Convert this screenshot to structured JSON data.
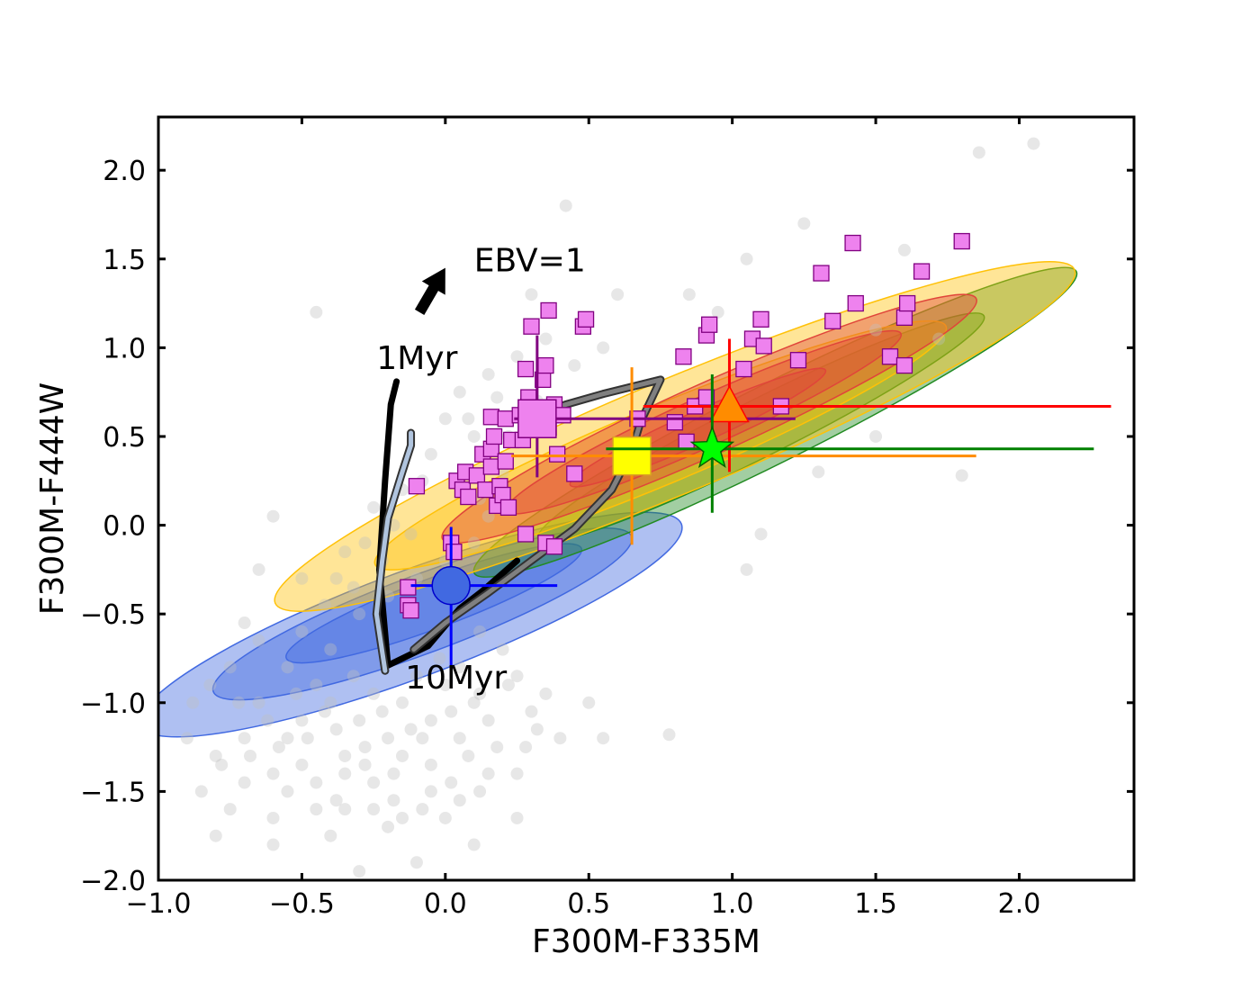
{
  "chart_data": {
    "type": "scatter",
    "xlabel": "F300M-F335M",
    "ylabel": "F300M-F444W",
    "xlim": [
      -1.0,
      2.4
    ],
    "ylim": [
      -2.0,
      2.3
    ],
    "xticks": [
      "−1.0",
      "−0.5",
      "0.0",
      "0.5",
      "1.0",
      "1.5",
      "2.0"
    ],
    "xtick_values": [
      -1.0,
      -0.5,
      0.0,
      0.5,
      1.0,
      1.5,
      2.0
    ],
    "yticks": [
      "−2.0",
      "−1.5",
      "−1.0",
      "−0.5",
      "0.0",
      "0.5",
      "1.0",
      "1.5",
      "2.0"
    ],
    "ytick_values": [
      -2.0,
      -1.5,
      -1.0,
      -0.5,
      0.0,
      0.5,
      1.0,
      1.5,
      2.0
    ],
    "annotations": [
      {
        "text": "EBV=1",
        "x": 0.1,
        "y": 1.43
      },
      {
        "text": "1Myr",
        "x": -0.24,
        "y": 0.88
      },
      {
        "text": "10Myr",
        "x": -0.14,
        "y": -0.92
      }
    ],
    "reddening_arrow": {
      "x0": -0.09,
      "y0": 1.2,
      "x1": 0.0,
      "y1": 1.45
    },
    "tracks": [
      {
        "color": "#000000",
        "points": [
          [
            -0.17,
            0.81
          ],
          [
            -0.19,
            0.68
          ],
          [
            -0.21,
            0.25
          ],
          [
            -0.23,
            -0.25
          ],
          [
            -0.2,
            -0.79
          ],
          [
            -0.06,
            -0.68
          ],
          [
            0.05,
            -0.47
          ],
          [
            0.13,
            -0.37
          ],
          [
            0.25,
            -0.2
          ]
        ]
      },
      {
        "color": "#b0c4de",
        "points": [
          [
            -0.12,
            0.52
          ],
          [
            -0.12,
            0.45
          ],
          [
            -0.15,
            0.3
          ],
          [
            -0.2,
            0.04
          ],
          [
            -0.22,
            -0.2
          ],
          [
            -0.24,
            -0.5
          ],
          [
            -0.21,
            -0.82
          ]
        ]
      },
      {
        "color": "#808080",
        "points": [
          [
            -0.11,
            -0.7
          ],
          [
            0.0,
            -0.55
          ],
          [
            0.15,
            -0.38
          ],
          [
            0.3,
            -0.2
          ],
          [
            0.45,
            -0.02
          ],
          [
            0.58,
            0.2
          ],
          [
            0.65,
            0.42
          ],
          [
            0.68,
            0.58
          ],
          [
            0.75,
            0.82
          ],
          [
            0.55,
            0.74
          ],
          [
            0.42,
            0.68
          ],
          [
            0.35,
            0.64
          ],
          [
            0.25,
            0.6
          ]
        ]
      }
    ],
    "contour_groups": [
      {
        "color": "#4169e1",
        "levels": [
          {
            "cx": -0.12,
            "cy": -0.56,
            "a": 1.1,
            "b": 0.3,
            "angle": 31
          },
          {
            "cx": -0.08,
            "cy": -0.5,
            "a": 0.85,
            "b": 0.22,
            "angle": 31
          },
          {
            "cx": -0.04,
            "cy": -0.44,
            "a": 0.6,
            "b": 0.14,
            "angle": 31
          }
        ]
      },
      {
        "color": "#228b22",
        "levels": [
          {
            "cx": 1.15,
            "cy": 0.58,
            "a": 1.35,
            "b": 0.22,
            "angle": 39
          },
          {
            "cx": 1.1,
            "cy": 0.55,
            "a": 1.0,
            "b": 0.16,
            "angle": 39
          }
        ]
      },
      {
        "color": "#ffc107",
        "levels": [
          {
            "cx": 0.8,
            "cy": 0.5,
            "a": 1.68,
            "b": 0.32,
            "angle": 34
          },
          {
            "cx": 0.75,
            "cy": 0.45,
            "a": 1.2,
            "b": 0.22,
            "angle": 34
          }
        ]
      },
      {
        "color": "#e0453a",
        "levels": [
          {
            "cx": 0.92,
            "cy": 0.6,
            "a": 1.15,
            "b": 0.2,
            "angle": 36
          },
          {
            "cx": 0.9,
            "cy": 0.58,
            "a": 0.85,
            "b": 0.14,
            "angle": 36
          },
          {
            "cx": 0.88,
            "cy": 0.55,
            "a": 0.55,
            "b": 0.09,
            "angle": 36
          }
        ]
      }
    ],
    "background_points": {
      "color": "#c0c0c0",
      "points": [
        [
          -0.55,
          -1.2
        ],
        [
          -0.5,
          -1.1
        ],
        [
          -0.45,
          -0.9
        ],
        [
          -0.4,
          -1.0
        ],
        [
          -0.35,
          -1.3
        ],
        [
          -0.3,
          -1.1
        ],
        [
          -0.25,
          -0.95
        ],
        [
          -0.2,
          -1.2
        ],
        [
          -0.15,
          -1.0
        ],
        [
          -0.1,
          -0.85
        ],
        [
          -0.05,
          -1.1
        ],
        [
          0.0,
          -0.9
        ],
        [
          0.05,
          -0.8
        ],
        [
          0.1,
          -1.0
        ],
        [
          -0.6,
          -1.4
        ],
        [
          -0.65,
          -1.0
        ],
        [
          -0.7,
          -1.2
        ],
        [
          -0.75,
          -0.8
        ],
        [
          -0.8,
          -1.3
        ],
        [
          -0.55,
          -1.5
        ],
        [
          -0.45,
          -1.6
        ],
        [
          -0.35,
          -1.4
        ],
        [
          -0.25,
          -1.45
        ],
        [
          -0.15,
          -1.3
        ],
        [
          -0.05,
          -1.35
        ],
        [
          0.05,
          -1.2
        ],
        [
          0.15,
          -1.1
        ],
        [
          0.2,
          -0.7
        ],
        [
          0.25,
          -0.85
        ],
        [
          0.3,
          -1.05
        ],
        [
          -0.5,
          -0.6
        ],
        [
          -0.4,
          -0.7
        ],
        [
          -0.3,
          -0.5
        ],
        [
          -0.2,
          -0.4
        ],
        [
          -0.1,
          -0.3
        ],
        [
          0.0,
          -0.2
        ],
        [
          0.1,
          -0.1
        ],
        [
          0.15,
          0.05
        ],
        [
          0.2,
          0.3
        ],
        [
          0.1,
          0.5
        ],
        [
          0.0,
          0.6
        ],
        [
          -0.05,
          0.4
        ],
        [
          0.05,
          0.75
        ],
        [
          0.15,
          0.85
        ],
        [
          0.25,
          0.95
        ],
        [
          0.35,
          1.05
        ],
        [
          0.42,
          1.8
        ],
        [
          0.3,
          1.3
        ],
        [
          -0.45,
          1.2
        ],
        [
          -0.6,
          0.05
        ],
        [
          -0.65,
          -0.25
        ],
        [
          -0.7,
          -0.55
        ],
        [
          -0.75,
          -1.6
        ],
        [
          -0.8,
          -1.75
        ],
        [
          -0.6,
          -1.8
        ],
        [
          -0.4,
          -1.75
        ],
        [
          -0.2,
          -1.7
        ],
        [
          0.0,
          -1.65
        ],
        [
          0.12,
          -1.5
        ],
        [
          0.25,
          -1.4
        ],
        [
          0.4,
          -1.2
        ],
        [
          0.5,
          -1.0
        ],
        [
          -0.85,
          -1.5
        ],
        [
          -0.88,
          -1.0
        ],
        [
          -0.3,
          -1.95
        ],
        [
          -0.1,
          -1.9
        ],
        [
          0.1,
          -1.8
        ],
        [
          0.25,
          -1.65
        ],
        [
          0.55,
          -1.2
        ],
        [
          0.78,
          -1.18
        ],
        [
          1.05,
          -0.25
        ],
        [
          1.1,
          -0.05
        ],
        [
          1.3,
          0.3
        ],
        [
          1.5,
          0.5
        ],
        [
          1.8,
          0.28
        ],
        [
          1.86,
          2.1
        ],
        [
          2.05,
          2.15
        ],
        [
          1.72,
          1.05
        ],
        [
          1.5,
          1.1
        ],
        [
          1.25,
          1.7
        ],
        [
          1.6,
          1.55
        ],
        [
          0.85,
          1.3
        ],
        [
          0.95,
          1.2
        ],
        [
          1.05,
          1.5
        ],
        [
          0.6,
          1.3
        ],
        [
          0.55,
          1.0
        ],
        [
          0.45,
          0.9
        ],
        [
          -0.35,
          -0.15
        ],
        [
          -0.25,
          0.1
        ],
        [
          -0.15,
          0.2
        ],
        [
          -0.5,
          -0.3
        ],
        [
          -0.55,
          -0.8
        ],
        [
          -0.65,
          -0.65
        ],
        [
          -0.9,
          -1.2
        ],
        [
          -0.82,
          -0.9
        ],
        [
          -0.7,
          -1.45
        ],
        [
          -0.6,
          -1.65
        ],
        [
          -0.5,
          -1.35
        ],
        [
          -0.38,
          -1.55
        ],
        [
          -0.28,
          -1.25
        ],
        [
          -0.18,
          -1.55
        ],
        [
          -0.08,
          -1.6
        ],
        [
          0.02,
          -1.45
        ],
        [
          0.08,
          -1.3
        ],
        [
          0.18,
          -1.25
        ],
        [
          0.28,
          -1.25
        ],
        [
          0.35,
          -0.95
        ],
        [
          0.12,
          -0.6
        ],
        [
          -0.02,
          -0.75
        ],
        [
          -0.12,
          -1.15
        ],
        [
          -0.22,
          -1.05
        ],
        [
          -0.32,
          -0.85
        ],
        [
          -0.42,
          -1.05
        ],
        [
          -0.52,
          -0.95
        ],
        [
          -0.62,
          -1.1
        ],
        [
          -0.72,
          -1.0
        ],
        [
          -0.78,
          -1.35
        ],
        [
          -0.68,
          -1.3
        ],
        [
          -0.58,
          -1.25
        ],
        [
          -0.48,
          -1.2
        ],
        [
          -0.38,
          -1.15
        ],
        [
          -0.28,
          -1.35
        ],
        [
          -0.18,
          -1.4
        ],
        [
          -0.08,
          -1.2
        ],
        [
          0.02,
          -1.05
        ],
        [
          0.12,
          -0.95
        ],
        [
          0.22,
          -0.9
        ],
        [
          0.32,
          -1.15
        ],
        [
          -0.45,
          -1.45
        ],
        [
          -0.35,
          -1.6
        ],
        [
          -0.25,
          -1.6
        ],
        [
          -0.15,
          -1.65
        ],
        [
          -0.05,
          -1.5
        ],
        [
          0.05,
          -1.55
        ],
        [
          0.15,
          -1.4
        ],
        [
          -0.42,
          -0.45
        ],
        [
          -0.32,
          -0.35
        ],
        [
          -0.22,
          -0.2
        ],
        [
          -0.12,
          -0.05
        ],
        [
          0.12,
          0.15
        ],
        [
          0.22,
          0.5
        ],
        [
          0.32,
          0.7
        ],
        [
          0.18,
          0.72
        ],
        [
          0.08,
          0.6
        ],
        [
          -0.08,
          0.25
        ],
        [
          -0.18,
          0.0
        ],
        [
          -0.28,
          -0.1
        ],
        [
          -0.38,
          -0.3
        ]
      ]
    },
    "series": [
      {
        "marker": "square",
        "color": "#ee82ee",
        "edge": "#800080",
        "points": [
          [
            -0.1,
            0.22
          ],
          [
            -0.13,
            -0.35
          ],
          [
            -0.13,
            -0.45
          ],
          [
            -0.12,
            -0.48
          ],
          [
            0.02,
            -0.1
          ],
          [
            0.03,
            -0.15
          ],
          [
            0.04,
            0.25
          ],
          [
            0.06,
            0.2
          ],
          [
            0.07,
            0.3
          ],
          [
            0.08,
            0.16
          ],
          [
            0.11,
            0.28
          ],
          [
            0.13,
            0.4
          ],
          [
            0.14,
            0.2
          ],
          [
            0.16,
            0.33
          ],
          [
            0.16,
            0.43
          ],
          [
            0.17,
            0.5
          ],
          [
            0.16,
            0.61
          ],
          [
            0.18,
            0.11
          ],
          [
            0.19,
            0.22
          ],
          [
            0.2,
            0.17
          ],
          [
            0.21,
            0.6
          ],
          [
            0.21,
            0.36
          ],
          [
            0.22,
            0.1
          ],
          [
            0.23,
            0.48
          ],
          [
            0.26,
            0.62
          ],
          [
            0.27,
            0.48
          ],
          [
            0.28,
            -0.05
          ],
          [
            0.28,
            0.88
          ],
          [
            0.29,
            0.67
          ],
          [
            0.29,
            0.72
          ],
          [
            0.3,
            0.64
          ],
          [
            0.3,
            1.12
          ],
          [
            0.32,
            0.57
          ],
          [
            0.34,
            0.82
          ],
          [
            0.35,
            0.9
          ],
          [
            0.35,
            -0.1
          ],
          [
            0.36,
            1.21
          ],
          [
            0.36,
            0.55
          ],
          [
            0.38,
            -0.12
          ],
          [
            0.38,
            0.68
          ],
          [
            0.39,
            0.4
          ],
          [
            0.41,
            0.62
          ],
          [
            0.45,
            0.29
          ],
          [
            0.48,
            1.12
          ],
          [
            0.49,
            1.16
          ],
          [
            0.67,
            0.6
          ],
          [
            0.8,
            0.58
          ],
          [
            0.84,
            0.47
          ],
          [
            0.87,
            0.67
          ],
          [
            0.91,
            0.72
          ],
          [
            0.91,
            1.07
          ],
          [
            0.92,
            1.13
          ],
          [
            1.04,
            0.88
          ],
          [
            1.07,
            1.05
          ],
          [
            1.1,
            1.16
          ],
          [
            1.11,
            1.01
          ],
          [
            1.17,
            0.67
          ],
          [
            1.23,
            0.93
          ],
          [
            0.83,
            0.95
          ],
          [
            1.31,
            1.42
          ],
          [
            1.35,
            1.15
          ],
          [
            1.42,
            1.59
          ],
          [
            1.43,
            1.25
          ],
          [
            1.55,
            0.95
          ],
          [
            1.6,
            0.9
          ],
          [
            1.6,
            1.17
          ],
          [
            1.61,
            1.25
          ],
          [
            1.66,
            1.43
          ],
          [
            1.8,
            1.6
          ]
        ]
      }
    ],
    "highlighted": [
      {
        "marker": "circle",
        "color": "#4169e1",
        "edge": "#0000cd",
        "err_color": "#0000ff",
        "x": 0.02,
        "y": -0.34,
        "xerr": [
          0.14,
          0.37
        ],
        "yerr": [
          0.55,
          0.33
        ]
      },
      {
        "marker": "square",
        "color": "#ee82ee",
        "edge": "#800080",
        "err_color": "#800080",
        "x": 0.32,
        "y": 0.6,
        "xerr": [
          0.08,
          0.9
        ],
        "yerr": [
          0.33,
          0.47
        ]
      },
      {
        "marker": "square",
        "color": "#ffff00",
        "edge": "#daa520",
        "err_color": "#ff8c00",
        "x": 0.65,
        "y": 0.39,
        "xerr": [
          0.42,
          1.2
        ],
        "yerr": [
          0.5,
          0.5
        ]
      },
      {
        "marker": "triangle",
        "color": "#ff8c00",
        "edge": "#ff0000",
        "err_color": "#ff0000",
        "x": 0.99,
        "y": 0.67,
        "xerr": [
          0.3,
          1.33
        ],
        "yerr": [
          0.37,
          0.38
        ]
      },
      {
        "marker": "star",
        "color": "#00ff00",
        "edge": "#006400",
        "err_color": "#008000",
        "x": 0.93,
        "y": 0.43,
        "xerr": [
          0.37,
          1.33
        ],
        "yerr": [
          0.36,
          0.42
        ]
      }
    ]
  }
}
